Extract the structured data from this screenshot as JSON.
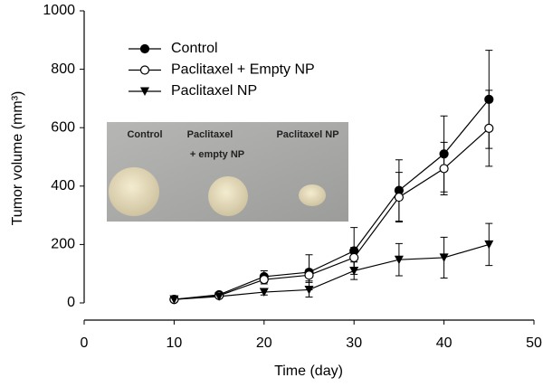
{
  "chart_data": {
    "type": "line",
    "x_label": "Time (day)",
    "y_label": "Tumor volume (mm³)",
    "x": [
      10,
      15,
      20,
      25,
      30,
      35,
      40,
      45
    ],
    "series": [
      {
        "name": "Control",
        "color": "#000000",
        "marker": "circle-filled",
        "values": [
          12,
          28,
          90,
          105,
          178,
          385,
          510,
          697
        ],
        "errors": [
          5,
          6,
          20,
          60,
          80,
          105,
          130,
          168
        ]
      },
      {
        "name": "Paclitaxel + Empty NP",
        "color": "#000000",
        "marker": "circle-open",
        "values": [
          12,
          25,
          80,
          95,
          155,
          362,
          460,
          598
        ],
        "errors": [
          5,
          6,
          15,
          20,
          35,
          85,
          90,
          130
        ]
      },
      {
        "name": "Paclitaxel NP",
        "color": "#000000",
        "marker": "triangle-down",
        "values": [
          12,
          22,
          37,
          45,
          110,
          148,
          155,
          200
        ],
        "errors": [
          5,
          5,
          10,
          25,
          30,
          55,
          70,
          72
        ]
      }
    ],
    "xlim": [
      0,
      50
    ],
    "xticks": [
      0,
      10,
      20,
      30,
      40,
      50
    ],
    "ylim": [
      0,
      1000
    ],
    "yticks": [
      0,
      200,
      400,
      600,
      800,
      1000
    ],
    "legend": "upper-left",
    "inset_labels": [
      [
        "Control"
      ],
      [
        "Paclitaxel",
        "+ empty NP"
      ],
      [
        "Paclitaxel NP"
      ]
    ]
  }
}
